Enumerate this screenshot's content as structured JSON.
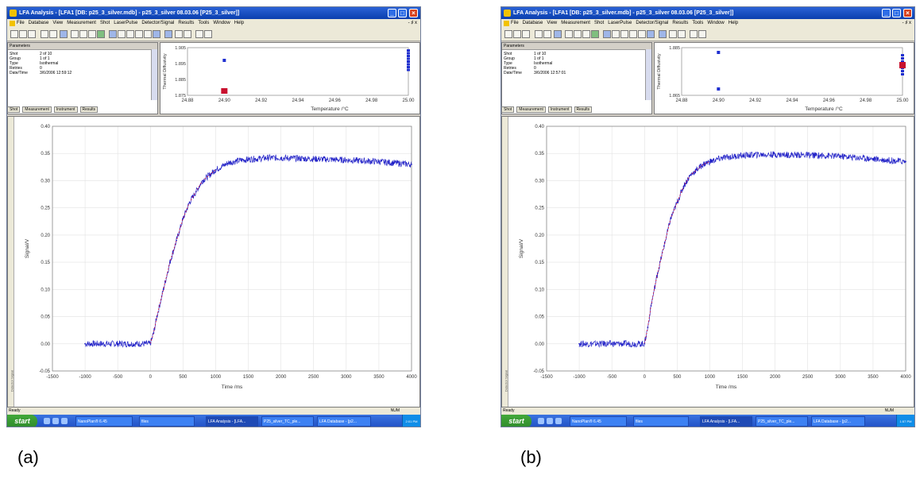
{
  "captions": {
    "a": "(a)",
    "b": "(b)"
  },
  "colors": {
    "signal": "#2424c8",
    "fit": "#cc0033",
    "titlebar": "#0b3fae",
    "taskbar": "#1f4fc4"
  },
  "window": {
    "title": "LFA Analysis - [LFA1 [DB: p25_3_silver.mdb] - p25_3_silver 08.03.06 [P25_3_silver]]",
    "menu": [
      "File",
      "Database",
      "View",
      "Measurement",
      "Shot",
      "LaserPulse",
      "Detector/Signal",
      "Results",
      "Tools",
      "Window",
      "Help"
    ],
    "menu_right": "- ♯ x",
    "status_ready": "Ready",
    "status_num": "NUM"
  },
  "params": {
    "header": "Parameters",
    "keys": [
      "Shot",
      "Group",
      "Type",
      "Retries",
      "Date/Time"
    ],
    "tabs": [
      "Shot",
      "Measurement",
      "Instrument",
      "Results"
    ]
  },
  "taskbar": {
    "start": "start",
    "items": [
      "NanoPlan® 6.45",
      "files",
      "LFA Analysis - [LFA...",
      "P25_silver_TC_ple...",
      "LFA Database - [p2..."
    ]
  },
  "panels": [
    {
      "params_values": [
        "2 of 10",
        "1 of 1",
        "Isothermal",
        "0",
        "3/6/2006 12:59:12"
      ],
      "tray_time": "2:01 PM",
      "top_plot": {
        "ylabel": "Thermal Diffusivity",
        "xlabel": "Temperature /°C",
        "x_ticks": [
          "24.88",
          "24.90",
          "24.92",
          "24.94",
          "24.96",
          "24.98",
          "25.00"
        ],
        "y_ticks": [
          "1.875",
          "1.885",
          "1.895",
          "1.905"
        ]
      }
    },
    {
      "params_values": [
        "1 of 10",
        "1 of 1",
        "Isothermal",
        "0",
        "3/6/2006 12:57:01"
      ],
      "tray_time": "1:57 PM",
      "top_plot": {
        "ylabel": "Thermal Diffusivity",
        "xlabel": "Temperature /°C",
        "x_ticks": [
          "24.88",
          "24.90",
          "24.92",
          "24.94",
          "24.96",
          "24.98",
          "25.00"
        ],
        "y_ticks": [
          "1.865",
          "1.885"
        ]
      }
    }
  ],
  "chart_data": [
    {
      "type": "line",
      "xlabel": "Time /ms",
      "ylabel": "Signal/V",
      "xlim": [
        -1500,
        4000
      ],
      "ylim": [
        -0.05,
        0.4
      ],
      "x_ticks": [
        "-1500",
        "-1000",
        "-500",
        "0",
        "500",
        "1000",
        "1500",
        "2000",
        "2500",
        "3000",
        "3500",
        "4000"
      ],
      "y_ticks": [
        "-0.05",
        "0.00",
        "0.05",
        "0.10",
        "0.15",
        "0.20",
        "0.25",
        "0.30",
        "0.35",
        "0.40"
      ],
      "grid": true,
      "series": [
        {
          "x": [
            -1000,
            -500,
            0,
            50,
            100,
            200,
            300,
            400,
            500,
            600,
            700,
            800,
            900,
            1000,
            1200,
            1400,
            1600,
            1800,
            2000,
            2500,
            3000,
            3500,
            4000
          ],
          "y": [
            0.0,
            0.0,
            0.0,
            0.02,
            0.05,
            0.1,
            0.15,
            0.19,
            0.23,
            0.26,
            0.28,
            0.3,
            0.31,
            0.32,
            0.333,
            0.338,
            0.34,
            0.342,
            0.342,
            0.34,
            0.338,
            0.335,
            0.33
          ]
        }
      ]
    },
    {
      "type": "line",
      "xlabel": "Time /ms",
      "ylabel": "Signal/V",
      "xlim": [
        -1500,
        4000
      ],
      "ylim": [
        -0.05,
        0.4
      ],
      "x_ticks": [
        "-1500",
        "-1000",
        "-500",
        "0",
        "500",
        "1000",
        "1500",
        "2000",
        "2500",
        "3000",
        "3500",
        "4000"
      ],
      "y_ticks": [
        "-0.05",
        "0.00",
        "0.05",
        "0.10",
        "0.15",
        "0.20",
        "0.25",
        "0.30",
        "0.35",
        "0.40"
      ],
      "grid": true,
      "series": [
        {
          "x": [
            -1000,
            -500,
            0,
            50,
            100,
            200,
            300,
            400,
            500,
            600,
            700,
            800,
            900,
            1000,
            1200,
            1400,
            1600,
            1800,
            2000,
            2500,
            3000,
            3500,
            4000
          ],
          "y": [
            0.0,
            0.0,
            0.0,
            0.03,
            0.07,
            0.13,
            0.18,
            0.23,
            0.26,
            0.29,
            0.31,
            0.32,
            0.33,
            0.335,
            0.342,
            0.345,
            0.347,
            0.348,
            0.348,
            0.347,
            0.345,
            0.34,
            0.335
          ]
        }
      ]
    }
  ]
}
